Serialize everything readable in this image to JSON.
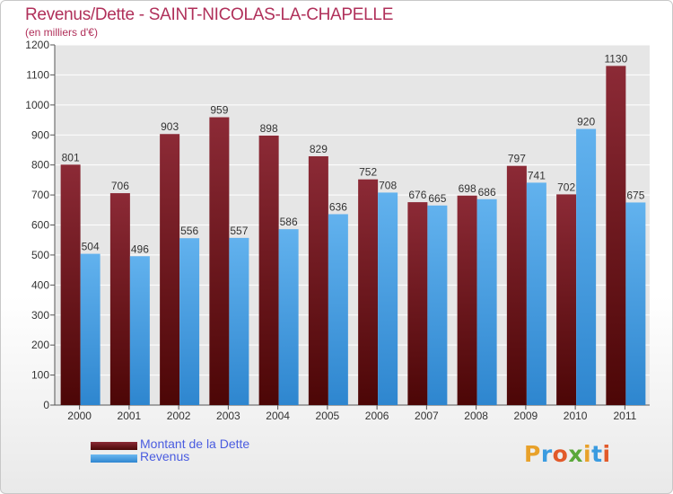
{
  "chart_data": {
    "type": "bar",
    "title": "Revenus/Dette - SAINT-NICOLAS-LA-CHAPELLE",
    "subtitle": "(en milliers d'€)",
    "categories": [
      "2000",
      "2001",
      "2002",
      "2003",
      "2004",
      "2005",
      "2006",
      "2007",
      "2008",
      "2009",
      "2010",
      "2011"
    ],
    "series": [
      {
        "name": "Montant de la Dette",
        "color": "#7a1420",
        "values": [
          801,
          706,
          903,
          959,
          898,
          829,
          752,
          676,
          698,
          797,
          702,
          1130
        ]
      },
      {
        "name": "Revenus",
        "color": "#3f97e0",
        "values": [
          504,
          496,
          556,
          557,
          586,
          636,
          708,
          665,
          686,
          741,
          920,
          675
        ]
      }
    ],
    "ylim": [
      0,
      1200
    ],
    "yticks": [
      0,
      100,
      200,
      300,
      400,
      500,
      600,
      700,
      800,
      900,
      1000,
      1100,
      1200
    ],
    "grid": true,
    "legend_position": "bottom-left"
  },
  "brand": {
    "letters": [
      "P",
      "r",
      "o",
      "x",
      "i",
      "t",
      "i"
    ],
    "colors": [
      "#e8a12a",
      "#3a9be0",
      "#e25a2a",
      "#5aa83a",
      "#e8a12a",
      "#3a9be0",
      "#e25a2a"
    ]
  }
}
